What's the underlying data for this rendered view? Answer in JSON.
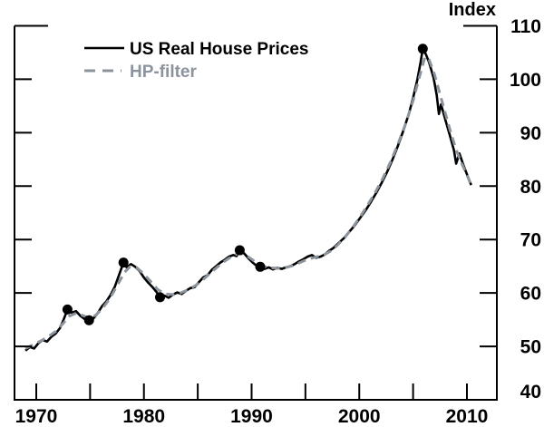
{
  "axis_titles": {
    "y_right": "Index"
  },
  "colors": {
    "series_main": "#000000",
    "series_hp": "#8b939c",
    "marker": "#000000",
    "axis": "#000000"
  },
  "chart_data": {
    "type": "line",
    "title": "",
    "xlabel": "",
    "ylabel_right": "Index",
    "legend_position": "top-left-inside",
    "grid": false,
    "x_axis": {
      "range": [
        1967.98,
        2012.78
      ],
      "minor_ticks": [
        1970,
        1975,
        1980,
        1985,
        1990,
        1995,
        2000,
        2005,
        2010
      ],
      "labeled_ticks": [
        1970,
        1980,
        1990,
        2000,
        2010
      ],
      "tick_labels": [
        "1970",
        "1980",
        "1990",
        "2000",
        "2010"
      ]
    },
    "y_axis": {
      "side": "right",
      "range": [
        40,
        110
      ],
      "ticks": [
        40,
        50,
        60,
        70,
        80,
        90,
        100,
        110
      ],
      "tick_labels": [
        "40",
        "50",
        "60",
        "70",
        "80",
        "90",
        "100",
        "110"
      ]
    },
    "series": [
      {
        "name": "US Real House Prices",
        "style": "solid",
        "color": "#000000",
        "points": [
          [
            1969.0,
            49.2
          ],
          [
            1969.4,
            49.9
          ],
          [
            1969.8,
            49.6
          ],
          [
            1970.2,
            50.6
          ],
          [
            1970.6,
            51.2
          ],
          [
            1971.0,
            50.9
          ],
          [
            1971.4,
            51.8
          ],
          [
            1971.8,
            52.4
          ],
          [
            1972.2,
            53.4
          ],
          [
            1972.5,
            54.8
          ],
          [
            1972.9,
            56.9
          ],
          [
            1973.3,
            56.3
          ],
          [
            1973.7,
            56.6
          ],
          [
            1974.1,
            55.7
          ],
          [
            1974.5,
            55.1
          ],
          [
            1974.9,
            54.9
          ],
          [
            1975.3,
            55.2
          ],
          [
            1975.7,
            56.2
          ],
          [
            1976.1,
            57.5
          ],
          [
            1976.5,
            58.4
          ],
          [
            1976.9,
            59.6
          ],
          [
            1977.3,
            61.2
          ],
          [
            1977.7,
            63.4
          ],
          [
            1978.1,
            65.7
          ],
          [
            1978.4,
            64.8
          ],
          [
            1978.8,
            65.4
          ],
          [
            1979.2,
            64.9
          ],
          [
            1979.6,
            64.1
          ],
          [
            1980.0,
            62.9
          ],
          [
            1980.4,
            61.9
          ],
          [
            1980.8,
            61.1
          ],
          [
            1981.2,
            60.1
          ],
          [
            1981.5,
            59.2
          ],
          [
            1981.9,
            59.5
          ],
          [
            1982.3,
            59.1
          ],
          [
            1982.7,
            59.7
          ],
          [
            1983.1,
            60.1
          ],
          [
            1983.5,
            59.8
          ],
          [
            1983.9,
            60.4
          ],
          [
            1984.3,
            60.9
          ],
          [
            1984.7,
            61.1
          ],
          [
            1985.1,
            62.0
          ],
          [
            1985.5,
            62.9
          ],
          [
            1985.9,
            63.3
          ],
          [
            1986.3,
            64.3
          ],
          [
            1986.7,
            65.0
          ],
          [
            1987.1,
            65.7
          ],
          [
            1987.5,
            66.2
          ],
          [
            1987.9,
            66.8
          ],
          [
            1988.3,
            67.1
          ],
          [
            1988.6,
            66.9
          ],
          [
            1988.9,
            68.0
          ],
          [
            1989.3,
            67.4
          ],
          [
            1989.7,
            66.5
          ],
          [
            1990.1,
            65.7
          ],
          [
            1990.4,
            65.2
          ],
          [
            1990.8,
            64.9
          ],
          [
            1991.2,
            64.5
          ],
          [
            1991.6,
            64.8
          ],
          [
            1992.0,
            64.4
          ],
          [
            1992.4,
            64.7
          ],
          [
            1992.8,
            64.5
          ],
          [
            1993.2,
            64.8
          ],
          [
            1993.6,
            65.0
          ],
          [
            1994.0,
            65.4
          ],
          [
            1994.4,
            65.9
          ],
          [
            1994.8,
            66.3
          ],
          [
            1995.2,
            66.8
          ],
          [
            1995.6,
            67.1
          ],
          [
            1996.0,
            66.6
          ],
          [
            1996.4,
            66.8
          ],
          [
            1996.8,
            67.2
          ],
          [
            1997.2,
            67.9
          ],
          [
            1997.6,
            68.4
          ],
          [
            1998.0,
            69.2
          ],
          [
            1998.6,
            70.3
          ],
          [
            1999.1,
            71.5
          ],
          [
            1999.6,
            72.7
          ],
          [
            2000.1,
            74.1
          ],
          [
            2000.6,
            75.5
          ],
          [
            2001.1,
            77.1
          ],
          [
            2001.6,
            78.8
          ],
          [
            2002.1,
            80.7
          ],
          [
            2002.6,
            82.7
          ],
          [
            2003.1,
            85.0
          ],
          [
            2003.6,
            87.6
          ],
          [
            2004.1,
            90.4
          ],
          [
            2004.6,
            93.5
          ],
          [
            2005.0,
            96.5
          ],
          [
            2005.4,
            100.0
          ],
          [
            2005.7,
            103.2
          ],
          [
            2005.9,
            105.7
          ],
          [
            2006.2,
            104.6
          ],
          [
            2006.5,
            103.1
          ],
          [
            2006.9,
            100.3
          ],
          [
            2007.2,
            97.0
          ],
          [
            2007.4,
            93.5
          ],
          [
            2007.6,
            95.3
          ],
          [
            2008.0,
            92.4
          ],
          [
            2008.4,
            89.6
          ],
          [
            2008.8,
            86.7
          ],
          [
            2009.0,
            84.2
          ],
          [
            2009.3,
            86.1
          ],
          [
            2009.7,
            83.8
          ],
          [
            2010.1,
            81.7
          ],
          [
            2010.4,
            80.2
          ]
        ]
      },
      {
        "name": "HP-filter",
        "style": "dashed",
        "color": "#8b939c",
        "points": [
          [
            1969.0,
            49.6
          ],
          [
            1969.7,
            50.3
          ],
          [
            1970.4,
            51.0
          ],
          [
            1971.1,
            51.8
          ],
          [
            1971.8,
            52.8
          ],
          [
            1972.5,
            54.3
          ],
          [
            1973.1,
            55.7
          ],
          [
            1973.7,
            56.2
          ],
          [
            1974.3,
            55.8
          ],
          [
            1974.9,
            55.3
          ],
          [
            1975.5,
            55.8
          ],
          [
            1976.2,
            57.2
          ],
          [
            1976.9,
            59.2
          ],
          [
            1977.6,
            61.7
          ],
          [
            1978.2,
            63.9
          ],
          [
            1978.7,
            64.9
          ],
          [
            1979.3,
            64.8
          ],
          [
            1979.9,
            63.7
          ],
          [
            1980.6,
            62.2
          ],
          [
            1981.3,
            60.6
          ],
          [
            1982.0,
            59.8
          ],
          [
            1982.7,
            59.7
          ],
          [
            1983.4,
            60.0
          ],
          [
            1984.1,
            60.6
          ],
          [
            1984.8,
            61.4
          ],
          [
            1985.5,
            62.5
          ],
          [
            1986.2,
            63.8
          ],
          [
            1986.9,
            65.0
          ],
          [
            1987.6,
            66.1
          ],
          [
            1988.3,
            67.0
          ],
          [
            1988.9,
            67.5
          ],
          [
            1989.6,
            66.9
          ],
          [
            1990.3,
            65.9
          ],
          [
            1991.0,
            65.0
          ],
          [
            1991.7,
            64.7
          ],
          [
            1992.4,
            64.6
          ],
          [
            1993.1,
            64.7
          ],
          [
            1993.8,
            65.1
          ],
          [
            1994.5,
            65.7
          ],
          [
            1995.2,
            66.3
          ],
          [
            1995.9,
            66.7
          ],
          [
            1996.6,
            67.0
          ],
          [
            1997.3,
            67.8
          ],
          [
            1998.0,
            69.0
          ],
          [
            1998.7,
            70.5
          ],
          [
            1999.4,
            72.3
          ],
          [
            2000.1,
            74.3
          ],
          [
            2000.8,
            76.5
          ],
          [
            2001.5,
            78.9
          ],
          [
            2002.2,
            81.5
          ],
          [
            2002.9,
            84.5
          ],
          [
            2003.6,
            87.9
          ],
          [
            2004.3,
            91.6
          ],
          [
            2005.0,
            96.0
          ],
          [
            2005.6,
            100.5
          ],
          [
            2006.1,
            104.2
          ],
          [
            2006.5,
            103.6
          ],
          [
            2007.0,
            100.8
          ],
          [
            2007.5,
            97.2
          ],
          [
            2008.0,
            93.6
          ],
          [
            2008.5,
            90.0
          ],
          [
            2009.0,
            86.8
          ],
          [
            2009.5,
            84.3
          ],
          [
            2010.0,
            82.1
          ],
          [
            2010.5,
            79.7
          ]
        ]
      }
    ],
    "turning_point_markers": [
      [
        1972.9,
        56.9
      ],
      [
        1974.9,
        54.9
      ],
      [
        1978.1,
        65.7
      ],
      [
        1981.5,
        59.2
      ],
      [
        1988.9,
        68.0
      ],
      [
        1990.8,
        64.9
      ],
      [
        2005.9,
        105.7
      ]
    ]
  }
}
